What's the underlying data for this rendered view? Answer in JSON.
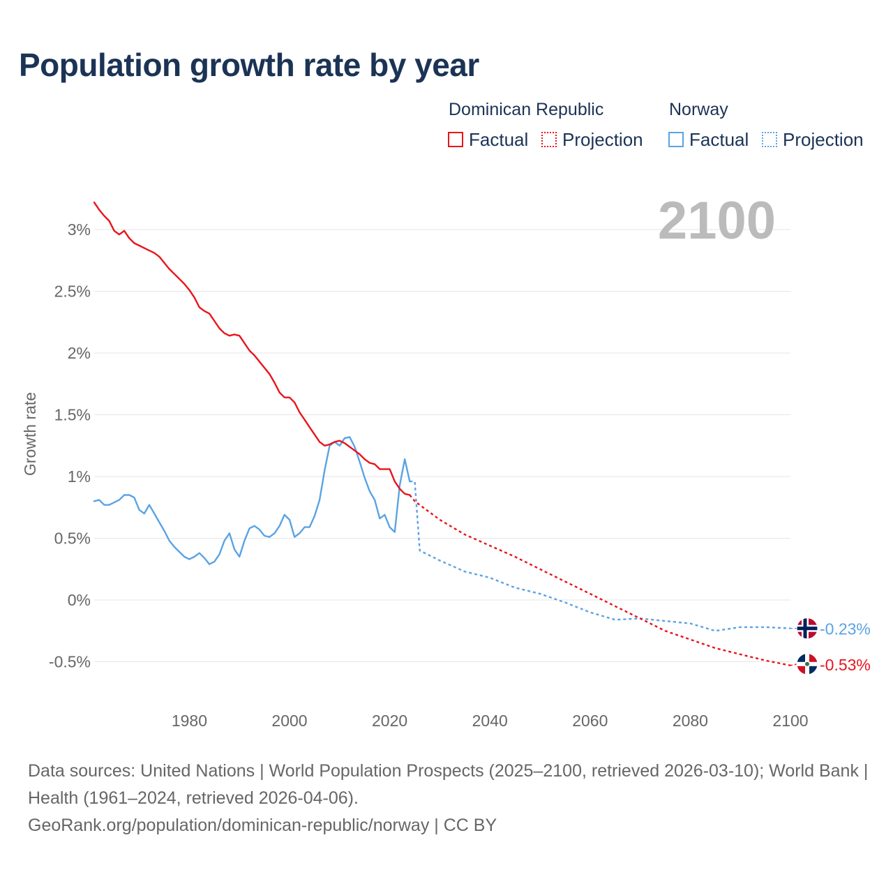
{
  "title": "Population growth rate by year",
  "legend": {
    "groups": [
      {
        "country": "Dominican Republic",
        "factual_label": "Factual",
        "projection_label": "Projection",
        "color": "#e8141c"
      },
      {
        "country": "Norway",
        "factual_label": "Factual",
        "projection_label": "Projection",
        "color": "#5aa3e3"
      }
    ]
  },
  "footer": {
    "sources": "Data sources: United Nations | World Population Prospects (2025–2100, retrieved 2026-03-10); World Bank | Health (1961–2024, retrieved 2026-04-06).",
    "attribution": "GeoRank.org/population/dominican-republic/norway | CC BY"
  },
  "chart_data": {
    "type": "line",
    "title": "Population growth rate by year",
    "xlabel": "",
    "ylabel": "Growth rate",
    "year_label": "2100",
    "xlim": [
      1961,
      2100
    ],
    "ylim": [
      -0.65,
      3.25
    ],
    "x_ticks": [
      1980,
      2000,
      2020,
      2040,
      2060,
      2080,
      2100
    ],
    "y_ticks": [
      {
        "value": 3,
        "label": "3%"
      },
      {
        "value": 2.5,
        "label": "2.5%"
      },
      {
        "value": 2,
        "label": "2%"
      },
      {
        "value": 1.5,
        "label": "1.5%"
      },
      {
        "value": 1,
        "label": "1%"
      },
      {
        "value": 0.5,
        "label": "0.5%"
      },
      {
        "value": 0,
        "label": "0%"
      },
      {
        "value": -0.5,
        "label": "-0.5%"
      }
    ],
    "grid": true,
    "series": [
      {
        "name": "Dominican Republic",
        "color": "#e8141c",
        "end_label": "-0.53%",
        "flag": "dominican-republic-flag-icon",
        "factual": {
          "x": [
            1961,
            1962,
            1963,
            1964,
            1965,
            1966,
            1967,
            1968,
            1969,
            1970,
            1971,
            1972,
            1973,
            1974,
            1975,
            1976,
            1977,
            1978,
            1979,
            1980,
            1981,
            1982,
            1983,
            1984,
            1985,
            1986,
            1987,
            1988,
            1989,
            1990,
            1991,
            1992,
            1993,
            1994,
            1995,
            1996,
            1997,
            1998,
            1999,
            2000,
            2001,
            2002,
            2003,
            2004,
            2005,
            2006,
            2007,
            2008,
            2009,
            2010,
            2011,
            2012,
            2013,
            2014,
            2015,
            2016,
            2017,
            2018,
            2019,
            2020,
            2021,
            2022,
            2023,
            2024
          ],
          "y": [
            3.22,
            3.16,
            3.11,
            3.07,
            2.99,
            2.96,
            2.99,
            2.93,
            2.89,
            2.87,
            2.85,
            2.83,
            2.81,
            2.78,
            2.73,
            2.68,
            2.64,
            2.6,
            2.56,
            2.51,
            2.45,
            2.37,
            2.34,
            2.32,
            2.26,
            2.2,
            2.16,
            2.14,
            2.15,
            2.14,
            2.08,
            2.02,
            1.98,
            1.93,
            1.88,
            1.83,
            1.76,
            1.68,
            1.64,
            1.64,
            1.6,
            1.52,
            1.46,
            1.4,
            1.34,
            1.28,
            1.25,
            1.26,
            1.28,
            1.29,
            1.27,
            1.24,
            1.21,
            1.18,
            1.14,
            1.11,
            1.1,
            1.06,
            1.06,
            1.06,
            0.96,
            0.9,
            0.86,
            0.85
          ]
        },
        "projection": {
          "x": [
            2024,
            2025,
            2030,
            2035,
            2040,
            2045,
            2050,
            2055,
            2060,
            2065,
            2070,
            2075,
            2080,
            2085,
            2090,
            2095,
            2100
          ],
          "y": [
            0.85,
            0.8,
            0.65,
            0.53,
            0.44,
            0.35,
            0.25,
            0.15,
            0.05,
            -0.05,
            -0.15,
            -0.25,
            -0.32,
            -0.39,
            -0.44,
            -0.49,
            -0.53
          ]
        }
      },
      {
        "name": "Norway",
        "color": "#5aa3e3",
        "end_label": "-0.23%",
        "flag": "norway-flag-icon",
        "factual": {
          "x": [
            1961,
            1962,
            1963,
            1964,
            1965,
            1966,
            1967,
            1968,
            1969,
            1970,
            1971,
            1972,
            1973,
            1974,
            1975,
            1976,
            1977,
            1978,
            1979,
            1980,
            1981,
            1982,
            1983,
            1984,
            1985,
            1986,
            1987,
            1988,
            1989,
            1990,
            1991,
            1992,
            1993,
            1994,
            1995,
            1996,
            1997,
            1998,
            1999,
            2000,
            2001,
            2002,
            2003,
            2004,
            2005,
            2006,
            2007,
            2008,
            2009,
            2010,
            2011,
            2012,
            2013,
            2014,
            2015,
            2016,
            2017,
            2018,
            2019,
            2020,
            2021,
            2022,
            2023,
            2024
          ],
          "y": [
            0.8,
            0.81,
            0.77,
            0.77,
            0.79,
            0.81,
            0.85,
            0.85,
            0.83,
            0.73,
            0.7,
            0.77,
            0.7,
            0.63,
            0.56,
            0.48,
            0.43,
            0.39,
            0.35,
            0.33,
            0.35,
            0.38,
            0.34,
            0.29,
            0.31,
            0.37,
            0.48,
            0.54,
            0.41,
            0.35,
            0.48,
            0.58,
            0.6,
            0.57,
            0.52,
            0.51,
            0.54,
            0.6,
            0.69,
            0.65,
            0.51,
            0.54,
            0.59,
            0.59,
            0.68,
            0.81,
            1.05,
            1.25,
            1.28,
            1.25,
            1.31,
            1.32,
            1.24,
            1.12,
            0.99,
            0.88,
            0.81,
            0.66,
            0.69,
            0.59,
            0.55,
            0.93,
            1.14,
            0.96
          ]
        },
        "projection": {
          "x": [
            2024,
            2025,
            2026,
            2030,
            2035,
            2040,
            2045,
            2050,
            2055,
            2060,
            2065,
            2070,
            2075,
            2080,
            2085,
            2090,
            2095,
            2100
          ],
          "y": [
            0.96,
            0.96,
            0.4,
            0.32,
            0.23,
            0.18,
            0.1,
            0.05,
            -0.02,
            -0.1,
            -0.16,
            -0.15,
            -0.17,
            -0.19,
            -0.25,
            -0.22,
            -0.22,
            -0.23
          ]
        }
      }
    ]
  }
}
